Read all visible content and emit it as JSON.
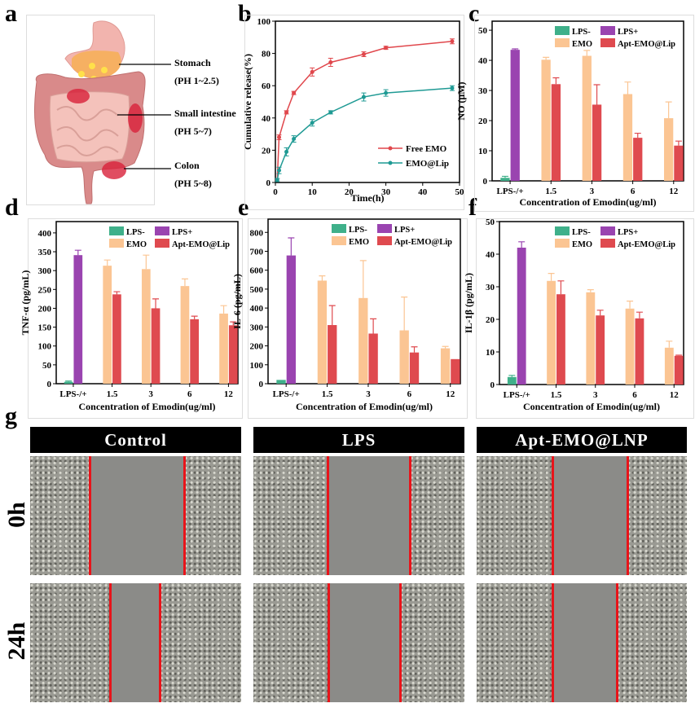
{
  "panel_labels": {
    "a": "a",
    "b": "b",
    "c": "c",
    "d": "d",
    "e": "e",
    "f": "f",
    "g": "g"
  },
  "panel_a": {
    "regions": [
      {
        "name": "Stomach",
        "ph": "(PH 1~2.5)"
      },
      {
        "name": "Small intestine",
        "ph": "(PH 5~7)"
      },
      {
        "name": "Colon",
        "ph": "(PH 5~8)"
      }
    ]
  },
  "chart_data": [
    {
      "id": "b",
      "type": "line",
      "xlabel": "Time(h)",
      "ylabel": "Cumulative release(%)",
      "xlim": [
        0,
        50
      ],
      "ylim": [
        0,
        100
      ],
      "xticks": [
        0,
        10,
        20,
        30,
        40,
        50
      ],
      "yticks": [
        0,
        20,
        40,
        60,
        80,
        100
      ],
      "grid": false,
      "legend_position": "bottom-right",
      "x": [
        0.5,
        1,
        3,
        5,
        10,
        15,
        24,
        30,
        48
      ],
      "series": [
        {
          "name": "Free EMO",
          "color": "#e0474c",
          "values": [
            1.5,
            28,
            43.5,
            55.5,
            68.5,
            74.5,
            79.5,
            83.5,
            87.5
          ],
          "errors": [
            1,
            1.5,
            1,
            1,
            2.5,
            2.5,
            1.5,
            1,
            1.5
          ]
        },
        {
          "name": "EMO@Lip",
          "color": "#1f9a94",
          "values": [
            1.5,
            7.5,
            19,
            27,
            37,
            43.5,
            53,
            55.5,
            58.5
          ],
          "errors": [
            1,
            2,
            2.5,
            2,
            2,
            1,
            2.5,
            2,
            1.5
          ]
        }
      ]
    },
    {
      "id": "c",
      "type": "bar",
      "xlabel": "Concentration of Emodin(ug/ml)",
      "ylabel": "NO (μM)",
      "ylim": [
        0,
        53
      ],
      "yticks": [
        0,
        10,
        20,
        30,
        40,
        50
      ],
      "categories": [
        "LPS-/+",
        "1.5",
        "3",
        "6",
        "12"
      ],
      "legend_position": "top-right",
      "series": [
        {
          "name": "LPS-",
          "color": "#3fb08a",
          "values": [
            1,
            null,
            null,
            null,
            null
          ],
          "errors": [
            0.5,
            null,
            null,
            null,
            null
          ]
        },
        {
          "name": "LPS+",
          "color": "#9a44b0",
          "values": [
            43.5,
            null,
            null,
            null,
            null
          ],
          "errors": [
            0.3,
            null,
            null,
            null,
            null
          ]
        },
        {
          "name": "EMO",
          "color": "#fbc593",
          "values": [
            null,
            40.2,
            41.5,
            28.8,
            20.8
          ],
          "errors": [
            null,
            0.8,
            1.8,
            4,
            5.4
          ]
        },
        {
          "name": "Apt-EMO@Lip",
          "color": "#df4a4f",
          "values": [
            null,
            32.1,
            25.3,
            14.3,
            11.7
          ],
          "errors": [
            null,
            2.1,
            6.6,
            1.5,
            1.5
          ]
        }
      ]
    },
    {
      "id": "d",
      "type": "bar",
      "xlabel": "Concentration of Emodin(ug/ml)",
      "ylabel": "TNF-α (pg/mL)",
      "ylim": [
        0,
        430
      ],
      "yticks": [
        0,
        50,
        100,
        150,
        200,
        250,
        300,
        350,
        400
      ],
      "categories": [
        "LPS-/+",
        "1.5",
        "3",
        "6",
        "12"
      ],
      "legend_position": "top-right",
      "series": [
        {
          "name": "LPS-",
          "color": "#3fb08a",
          "values": [
            5,
            null,
            null,
            null,
            null
          ],
          "errors": [
            2,
            null,
            null,
            null,
            null
          ]
        },
        {
          "name": "LPS+",
          "color": "#9a44b0",
          "values": [
            341,
            null,
            null,
            null,
            null
          ],
          "errors": [
            13,
            null,
            null,
            null,
            null
          ]
        },
        {
          "name": "EMO",
          "color": "#fbc593",
          "values": [
            null,
            313,
            304,
            259,
            186
          ],
          "errors": [
            null,
            15,
            37,
            19,
            21
          ]
        },
        {
          "name": "Apt-EMO@Lip",
          "color": "#df4a4f",
          "values": [
            null,
            237,
            200,
            171,
            155
          ],
          "errors": [
            null,
            7,
            25,
            8,
            9
          ]
        }
      ]
    },
    {
      "id": "e",
      "type": "bar",
      "xlabel": "Concentration of Emodin(ug/ml)",
      "ylabel": "IL-6 (pg/mL)",
      "ylim": [
        0,
        870
      ],
      "yticks": [
        0,
        100,
        200,
        300,
        400,
        500,
        600,
        700,
        800
      ],
      "categories": [
        "LPS-/+",
        "1.5",
        "3",
        "6",
        "12"
      ],
      "legend_position": "top-right",
      "series": [
        {
          "name": "LPS-",
          "color": "#3fb08a",
          "values": [
            20,
            null,
            null,
            null,
            null
          ],
          "errors": [
            0,
            null,
            null,
            null,
            null
          ]
        },
        {
          "name": "LPS+",
          "color": "#9a44b0",
          "values": [
            678,
            null,
            null,
            null,
            null
          ],
          "errors": [
            93,
            null,
            null,
            null,
            null
          ]
        },
        {
          "name": "EMO",
          "color": "#fbc593",
          "values": [
            null,
            545,
            453,
            282,
            187
          ],
          "errors": [
            null,
            25,
            198,
            176,
            10
          ]
        },
        {
          "name": "Apt-EMO@Lip",
          "color": "#df4a4f",
          "values": [
            null,
            310,
            265,
            165,
            130
          ],
          "errors": [
            null,
            103,
            78,
            30,
            0
          ]
        }
      ]
    },
    {
      "id": "f",
      "type": "bar",
      "xlabel": "Concentration of Emodin(ug/ml)",
      "ylabel": "IL-1β (pg/mL)",
      "ylim": [
        0,
        50
      ],
      "yticks": [
        0,
        10,
        20,
        30,
        40,
        50
      ],
      "categories": [
        "LPS-/+",
        "1.5",
        "3",
        "6",
        "12"
      ],
      "legend_position": "top-right",
      "series": [
        {
          "name": "LPS-",
          "color": "#3fb08a",
          "values": [
            2.3,
            null,
            null,
            null,
            null
          ],
          "errors": [
            0.5,
            null,
            null,
            null,
            null
          ]
        },
        {
          "name": "LPS+",
          "color": "#9a44b0",
          "values": [
            42,
            null,
            null,
            null,
            null
          ],
          "errors": [
            1.8,
            null,
            null,
            null,
            null
          ]
        },
        {
          "name": "EMO",
          "color": "#fbc593",
          "values": [
            null,
            31.8,
            28.3,
            23.3,
            11.3
          ],
          "errors": [
            null,
            2.3,
            0.8,
            2.3,
            2
          ]
        },
        {
          "name": "Apt-EMO@Lip",
          "color": "#df4a4f",
          "values": [
            null,
            27.7,
            21.2,
            20.3,
            8.8
          ],
          "errors": [
            null,
            4.1,
            1.6,
            1.9,
            0.2
          ]
        }
      ]
    }
  ],
  "panel_g": {
    "columns": [
      "Control",
      "LPS",
      "Apt-EMO@LNP"
    ],
    "rows": [
      "0h",
      "24h"
    ]
  }
}
